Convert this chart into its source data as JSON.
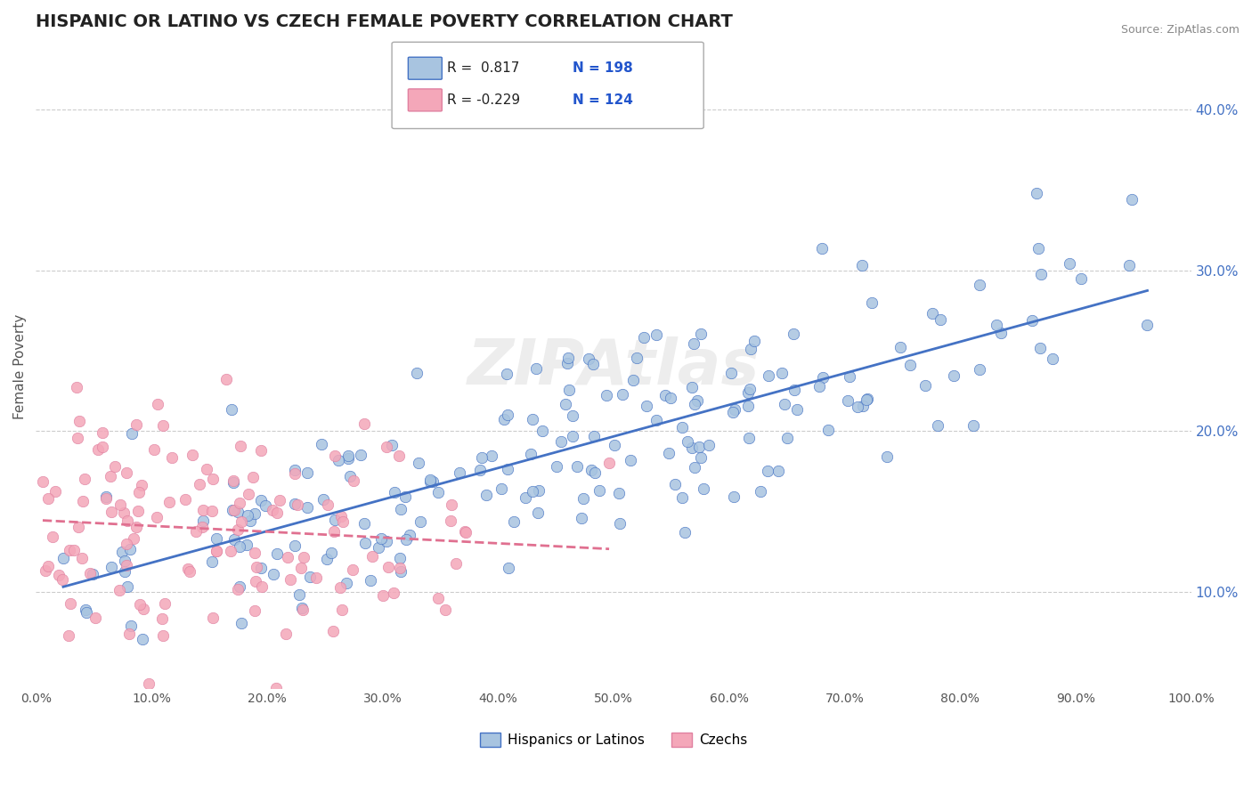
{
  "title": "HISPANIC OR LATINO VS CZECH FEMALE POVERTY CORRELATION CHART",
  "source": "Source: ZipAtlas.com",
  "xlabel": "",
  "ylabel": "Female Poverty",
  "xlim": [
    0,
    1.0
  ],
  "ylim": [
    0.04,
    0.44
  ],
  "x_ticks": [
    0.0,
    0.1,
    0.2,
    0.3,
    0.4,
    0.5,
    0.6,
    0.7,
    0.8,
    0.9,
    1.0
  ],
  "x_tick_labels": [
    "0.0%",
    "10.0%",
    "20.0%",
    "30.0%",
    "40.0%",
    "50.0%",
    "60.0%",
    "70.0%",
    "80.0%",
    "90.0%",
    "100.0%"
  ],
  "y_ticks": [
    0.1,
    0.2,
    0.3,
    0.4
  ],
  "y_tick_labels": [
    "10.0%",
    "20.0%",
    "30.0%",
    "40.0%"
  ],
  "blue_R": 0.817,
  "blue_N": 198,
  "pink_R": -0.229,
  "pink_N": 124,
  "blue_color": "#a8c4e0",
  "pink_color": "#f4a7b9",
  "blue_line_color": "#4472c4",
  "pink_line_color": "#e07090",
  "legend_label_blue": "Hispanics or Latinos",
  "legend_label_pink": "Czechs",
  "watermark": "ZIPAtlas",
  "title_fontsize": 14,
  "background_color": "#ffffff",
  "grid_color": "#cccccc"
}
